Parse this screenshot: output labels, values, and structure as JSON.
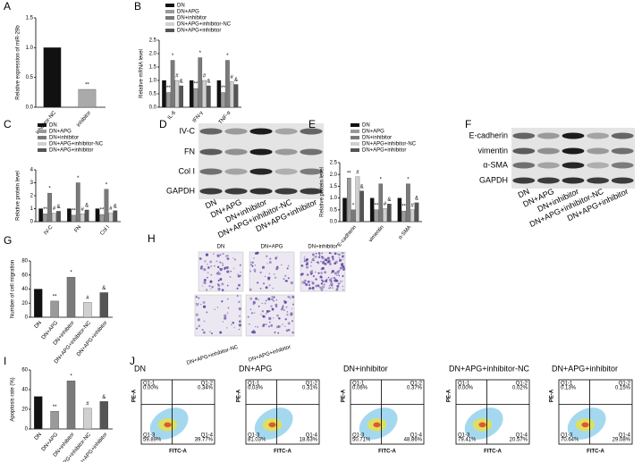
{
  "chart_data": [
    {
      "type": "bar",
      "panel": "A",
      "ylabel": "Relative expression of miR-29b",
      "categories": [
        "inhibitor-NC",
        "inhibitor"
      ],
      "values": [
        1.0,
        0.3
      ],
      "colors": [
        "#111111",
        "#aaaaaa"
      ],
      "marks": [
        null,
        "**"
      ],
      "ylim": [
        0,
        1.5
      ],
      "yticks": [
        {
          "value": 0,
          "label": "0.0"
        },
        0.5,
        {
          "value": 1,
          "label": "1.0"
        },
        1.5
      ]
    },
    {
      "type": "bar",
      "panel": "B",
      "ylabel": "Relative mRNA level",
      "categories": [
        "IL-6",
        "IFN-γ",
        "TNF-α"
      ],
      "series": [
        {
          "name": "DN",
          "color": "#111111",
          "values": [
            1.0,
            1.0,
            1.0
          ]
        },
        {
          "name": "DN+APG",
          "color": "#9a9a9a",
          "values": [
            0.55,
            0.7,
            0.55
          ],
          "marks": [
            "**",
            "**",
            "**"
          ]
        },
        {
          "name": "DN+inhibitor",
          "color": "#7a7a7a",
          "values": [
            1.75,
            1.85,
            1.75
          ],
          "marks": [
            "*",
            "*",
            "*"
          ]
        },
        {
          "name": "DN+APG+inhibitor-NC",
          "color": "#d0d0d0",
          "values": [
            1.0,
            1.0,
            0.95
          ],
          "marks": [
            "#",
            "#",
            "#"
          ]
        },
        {
          "name": "DN+APG+inhibitor",
          "color": "#555555",
          "values": [
            0.8,
            0.8,
            0.85
          ],
          "marks": [
            "&",
            "&",
            "&"
          ]
        }
      ],
      "ylim": [
        0,
        2.5
      ],
      "yticks": [
        {
          "value": 0,
          "label": "0.0"
        },
        0.5,
        {
          "value": 1,
          "label": "1.0"
        },
        1.5,
        {
          "value": 2,
          "label": "2.0"
        },
        2.5
      ]
    },
    {
      "type": "bar",
      "panel": "C",
      "ylabel": "Relative protein level",
      "categories": [
        "IV-C",
        "FN",
        "Col I"
      ],
      "series": [
        {
          "name": "DN",
          "color": "#111111",
          "values": [
            1.0,
            1.0,
            1.0
          ]
        },
        {
          "name": "DN+APG",
          "color": "#9a9a9a",
          "values": [
            0.6,
            0.5,
            0.55
          ],
          "marks": [
            "**",
            "**",
            "**"
          ]
        },
        {
          "name": "DN+inhibitor",
          "color": "#7a7a7a",
          "values": [
            2.2,
            3.0,
            2.5
          ],
          "marks": [
            "*",
            "*",
            "*"
          ]
        },
        {
          "name": "DN+APG+inhibitor-NC",
          "color": "#d0d0d0",
          "values": [
            0.65,
            0.6,
            0.65
          ],
          "marks": [
            "#",
            "#",
            "#"
          ]
        },
        {
          "name": "DN+APG+inhibitor",
          "color": "#555555",
          "values": [
            0.8,
            0.9,
            0.85
          ],
          "marks": [
            "&",
            "&",
            "&"
          ]
        }
      ],
      "ylim": [
        0,
        4
      ],
      "yticks": [
        0,
        1,
        2,
        3,
        4
      ]
    },
    {
      "type": "blot",
      "panel": "D",
      "rows": [
        "IV-C",
        "FN",
        "Col I",
        "GAPDH"
      ],
      "lanes": [
        "DN",
        "DN+APG",
        "DN+inhibitor",
        "DN+APG+inhibitor-NC",
        "DN+APG+inhibitor"
      ]
    },
    {
      "type": "bar",
      "panel": "E",
      "ylabel": "Relative protein level",
      "categories": [
        "E-cadherin",
        "vimentin",
        "α-SMA"
      ],
      "series": [
        {
          "name": "DN",
          "color": "#111111",
          "values": [
            1.0,
            1.0,
            1.0
          ]
        },
        {
          "name": "DN+APG",
          "color": "#9a9a9a",
          "values": [
            1.85,
            0.5,
            0.45
          ],
          "marks": [
            "**",
            "**",
            "**"
          ]
        },
        {
          "name": "DN+inhibitor",
          "color": "#7a7a7a",
          "values": [
            0.5,
            1.6,
            1.6
          ],
          "marks": [
            "*",
            "*",
            "*"
          ]
        },
        {
          "name": "DN+APG+inhibitor-NC",
          "color": "#d0d0d0",
          "values": [
            1.9,
            0.55,
            0.5
          ],
          "marks": [
            "#",
            "#",
            "#"
          ]
        },
        {
          "name": "DN+APG+inhibitor",
          "color": "#555555",
          "values": [
            1.3,
            0.75,
            0.8
          ],
          "marks": [
            "&",
            "&",
            "&"
          ]
        }
      ],
      "ylim": [
        0,
        2.5
      ],
      "yticks": [
        {
          "value": 0,
          "label": "0.0"
        },
        0.5,
        {
          "value": 1,
          "label": "1.0"
        },
        1.5,
        {
          "value": 2,
          "label": "2.0"
        },
        2.5
      ]
    },
    {
      "type": "blot",
      "panel": "F",
      "rows": [
        "E-cadherin",
        "vimentin",
        "α-SMA",
        "GAPDH"
      ],
      "lanes": [
        "DN",
        "DN+APG",
        "DN+inhibitor",
        "DN+APG+inhibitor-NC",
        "DN+APG+inhibitor"
      ]
    },
    {
      "type": "bar",
      "panel": "G",
      "ylabel": "Number of cell migration",
      "categories": [
        "DN",
        "DN+APG",
        "DN+inhibitor",
        "DN+APG+inhibitor-NC",
        "DN+APG+inhibitor"
      ],
      "values": [
        40,
        23,
        57,
        21,
        35
      ],
      "colors": [
        "#111111",
        "#9a9a9a",
        "#7a7a7a",
        "#d0d0d0",
        "#555555"
      ],
      "marks": [
        null,
        "**",
        "*",
        "#",
        "&"
      ],
      "ylim": [
        0,
        80
      ],
      "yticks": [
        0,
        20,
        40,
        60,
        80
      ]
    },
    {
      "type": "images",
      "panel": "H",
      "images": [
        "DN",
        "DN+APG",
        "DN+inhibitor",
        "DN+APG+inhibitor-NC",
        "DN+APG+inhibitor"
      ]
    },
    {
      "type": "bar",
      "panel": "I",
      "ylabel": "Apoptosis rate (%)",
      "categories": [
        "DN",
        "DN+APG",
        "DN+inhibitor",
        "DN+APG+inhibitor-NC",
        "DN+APG+inhibitor"
      ],
      "values": [
        33,
        18,
        49,
        21,
        28
      ],
      "colors": [
        "#111111",
        "#9a9a9a",
        "#7a7a7a",
        "#d0d0d0",
        "#555555"
      ],
      "marks": [
        null,
        "**",
        "*",
        "#",
        "&"
      ],
      "ylim": [
        0,
        60
      ],
      "yticks": [
        0,
        20,
        40,
        60
      ]
    },
    {
      "type": "flow",
      "panel": "J",
      "x_label": "FITC-A",
      "y_label": "PE-A",
      "plots": [
        {
          "title": "DN",
          "quadrants": [
            {
              "name": "Q1-1",
              "pct": "0.00%"
            },
            {
              "name": "Q1-2",
              "pct": "0.34%"
            },
            {
              "name": "Q1-3",
              "pct": "59.89%"
            },
            {
              "name": "Q1-4",
              "pct": "39.77%"
            }
          ]
        },
        {
          "title": "DN+APG",
          "quadrants": [
            {
              "name": "Q1-1",
              "pct": "0.03%"
            },
            {
              "name": "Q1-2",
              "pct": "0.31%"
            },
            {
              "name": "Q1-3",
              "pct": "81.03%"
            },
            {
              "name": "Q1-4",
              "pct": "18.63%"
            }
          ]
        },
        {
          "title": "DN+inhibitor",
          "quadrants": [
            {
              "name": "Q1-1",
              "pct": "0.06%"
            },
            {
              "name": "Q1-2",
              "pct": "0.37%"
            },
            {
              "name": "Q1-3",
              "pct": "50.71%"
            },
            {
              "name": "Q1-4",
              "pct": "48.86%"
            }
          ]
        },
        {
          "title": "DN+APG+inhibitor-NC",
          "quadrants": [
            {
              "name": "Q1-1",
              "pct": "0.00%"
            },
            {
              "name": "Q1-2",
              "pct": "0.02%"
            },
            {
              "name": "Q1-3",
              "pct": "79.41%"
            },
            {
              "name": "Q1-4",
              "pct": "20.57%"
            }
          ]
        },
        {
          "title": "DN+APG+inhibitor",
          "quadrants": [
            {
              "name": "Q1-1",
              "pct": "0.13%"
            },
            {
              "name": "Q1-2",
              "pct": "0.15%"
            },
            {
              "name": "Q1-3",
              "pct": "70.64%"
            },
            {
              "name": "Q1-4",
              "pct": "29.08%"
            }
          ]
        }
      ]
    }
  ]
}
